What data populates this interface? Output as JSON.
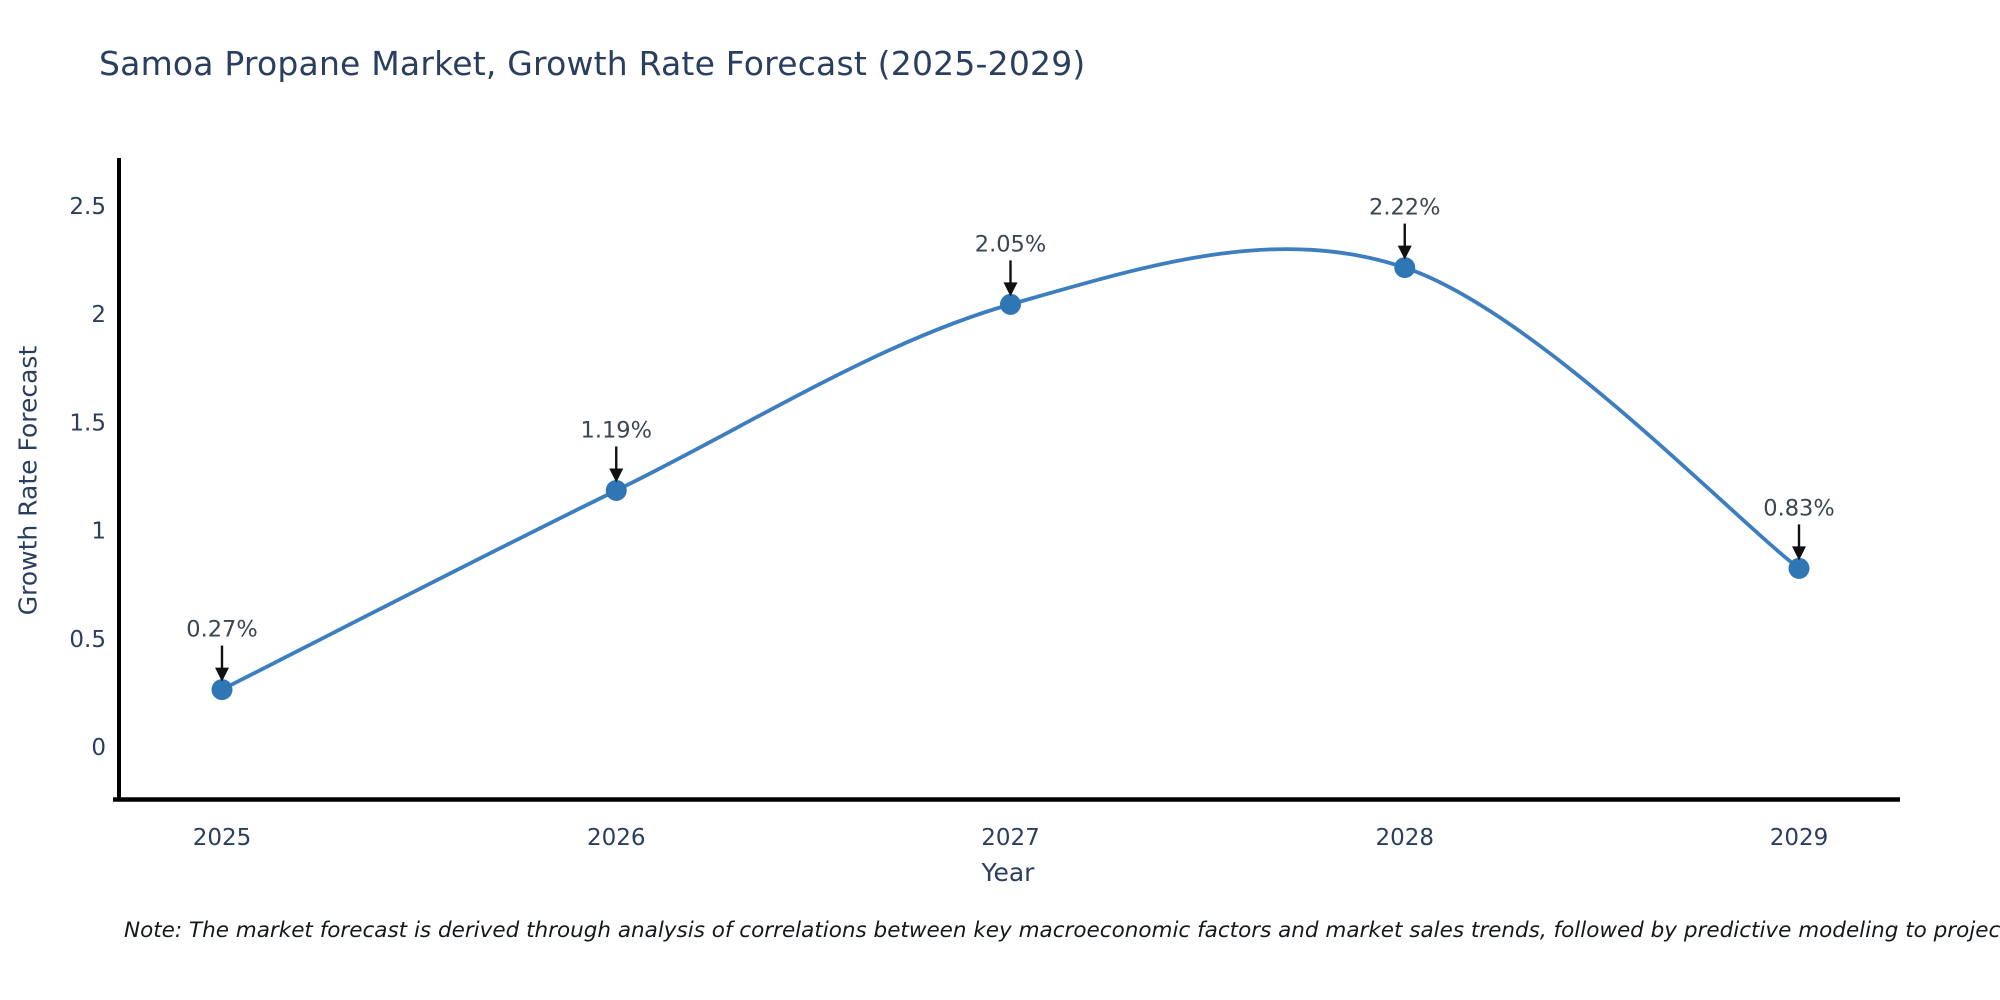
{
  "title": "Samoa Propane Market, Growth Rate Forecast (2025-2029)",
  "note": "Note: The market forecast is derived through analysis of correlations between key macroeconomic factors and market sales trends, followed by predictive modeling to project future sales",
  "chart_data": {
    "type": "line",
    "title": "Samoa Propane Market, Growth Rate Forecast (2025-2029)",
    "x": [
      2025,
      2026,
      2027,
      2028,
      2029
    ],
    "xticks": [
      "2025",
      "2026",
      "2027",
      "2028",
      "2029"
    ],
    "series": [
      {
        "name": "Growth Rate Forecast",
        "values": [
          0.27,
          1.19,
          2.05,
          2.22,
          0.83
        ]
      }
    ],
    "point_labels": [
      "0.27%",
      "1.19%",
      "2.05%",
      "2.22%",
      "0.83%"
    ],
    "xlabel": "Year",
    "ylabel": "Growth Rate Forecast",
    "yticks": [
      0,
      0.5,
      1,
      1.5,
      2,
      2.5
    ],
    "ylim": [
      -0.25,
      2.73
    ],
    "line_shape": "spline",
    "grid": false,
    "legend": "none",
    "colors": {
      "line": "#3d7ebf",
      "marker": "#2f76b5",
      "axis": "#000000",
      "tick_text": "#2a3f5f",
      "annotation_text": "#3b4652",
      "annotation_arrow": "#111111"
    }
  }
}
